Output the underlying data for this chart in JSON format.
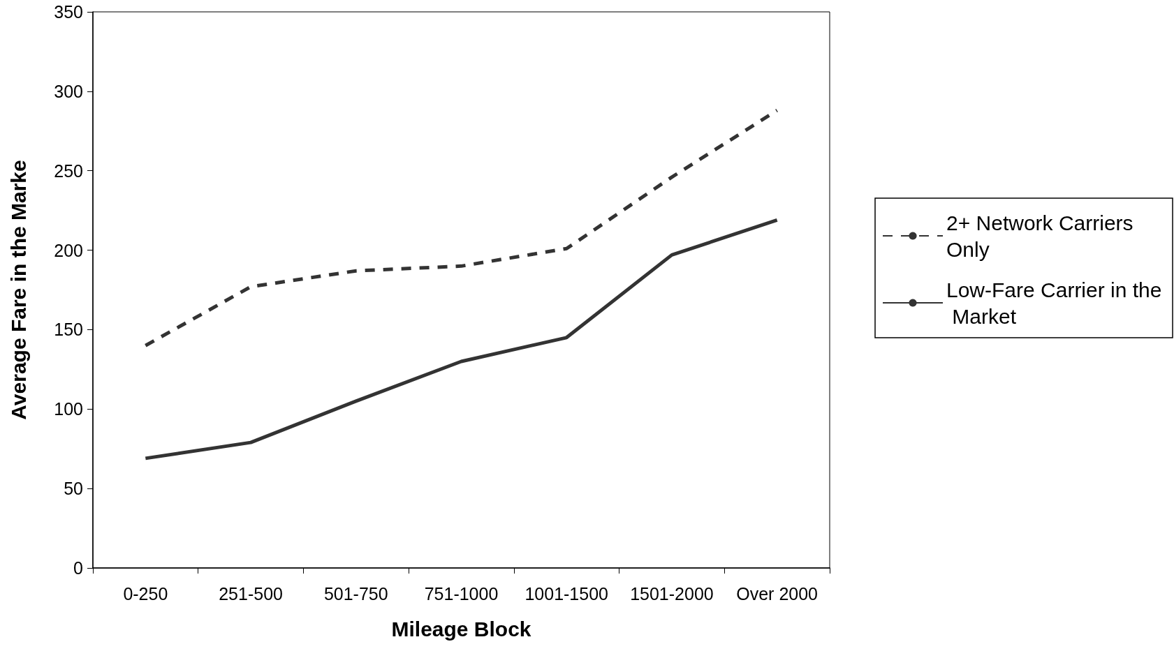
{
  "chart_data": {
    "type": "line",
    "xlabel": "Mileage Block",
    "ylabel": "Average Fare in the Marke",
    "categories": [
      "0-250",
      "251-500",
      "501-750",
      "751-1000",
      "1001-1500",
      "1501-2000",
      "Over 2000"
    ],
    "series": [
      {
        "name": "2+ Network Carriers Only",
        "color": "#333333",
        "line_style": "dashed",
        "values": [
          140,
          177,
          187,
          190,
          201,
          246,
          288
        ]
      },
      {
        "name": "Low-Fare Carrier in the Market",
        "color": "#333333",
        "line_style": "solid",
        "values": [
          69,
          79,
          105,
          130,
          145,
          197,
          219
        ]
      }
    ],
    "ylim": [
      0,
      350
    ],
    "yticks": [
      0,
      50,
      100,
      150,
      200,
      250,
      300,
      350
    ],
    "grid": false,
    "legend": "right",
    "marker": "none"
  }
}
